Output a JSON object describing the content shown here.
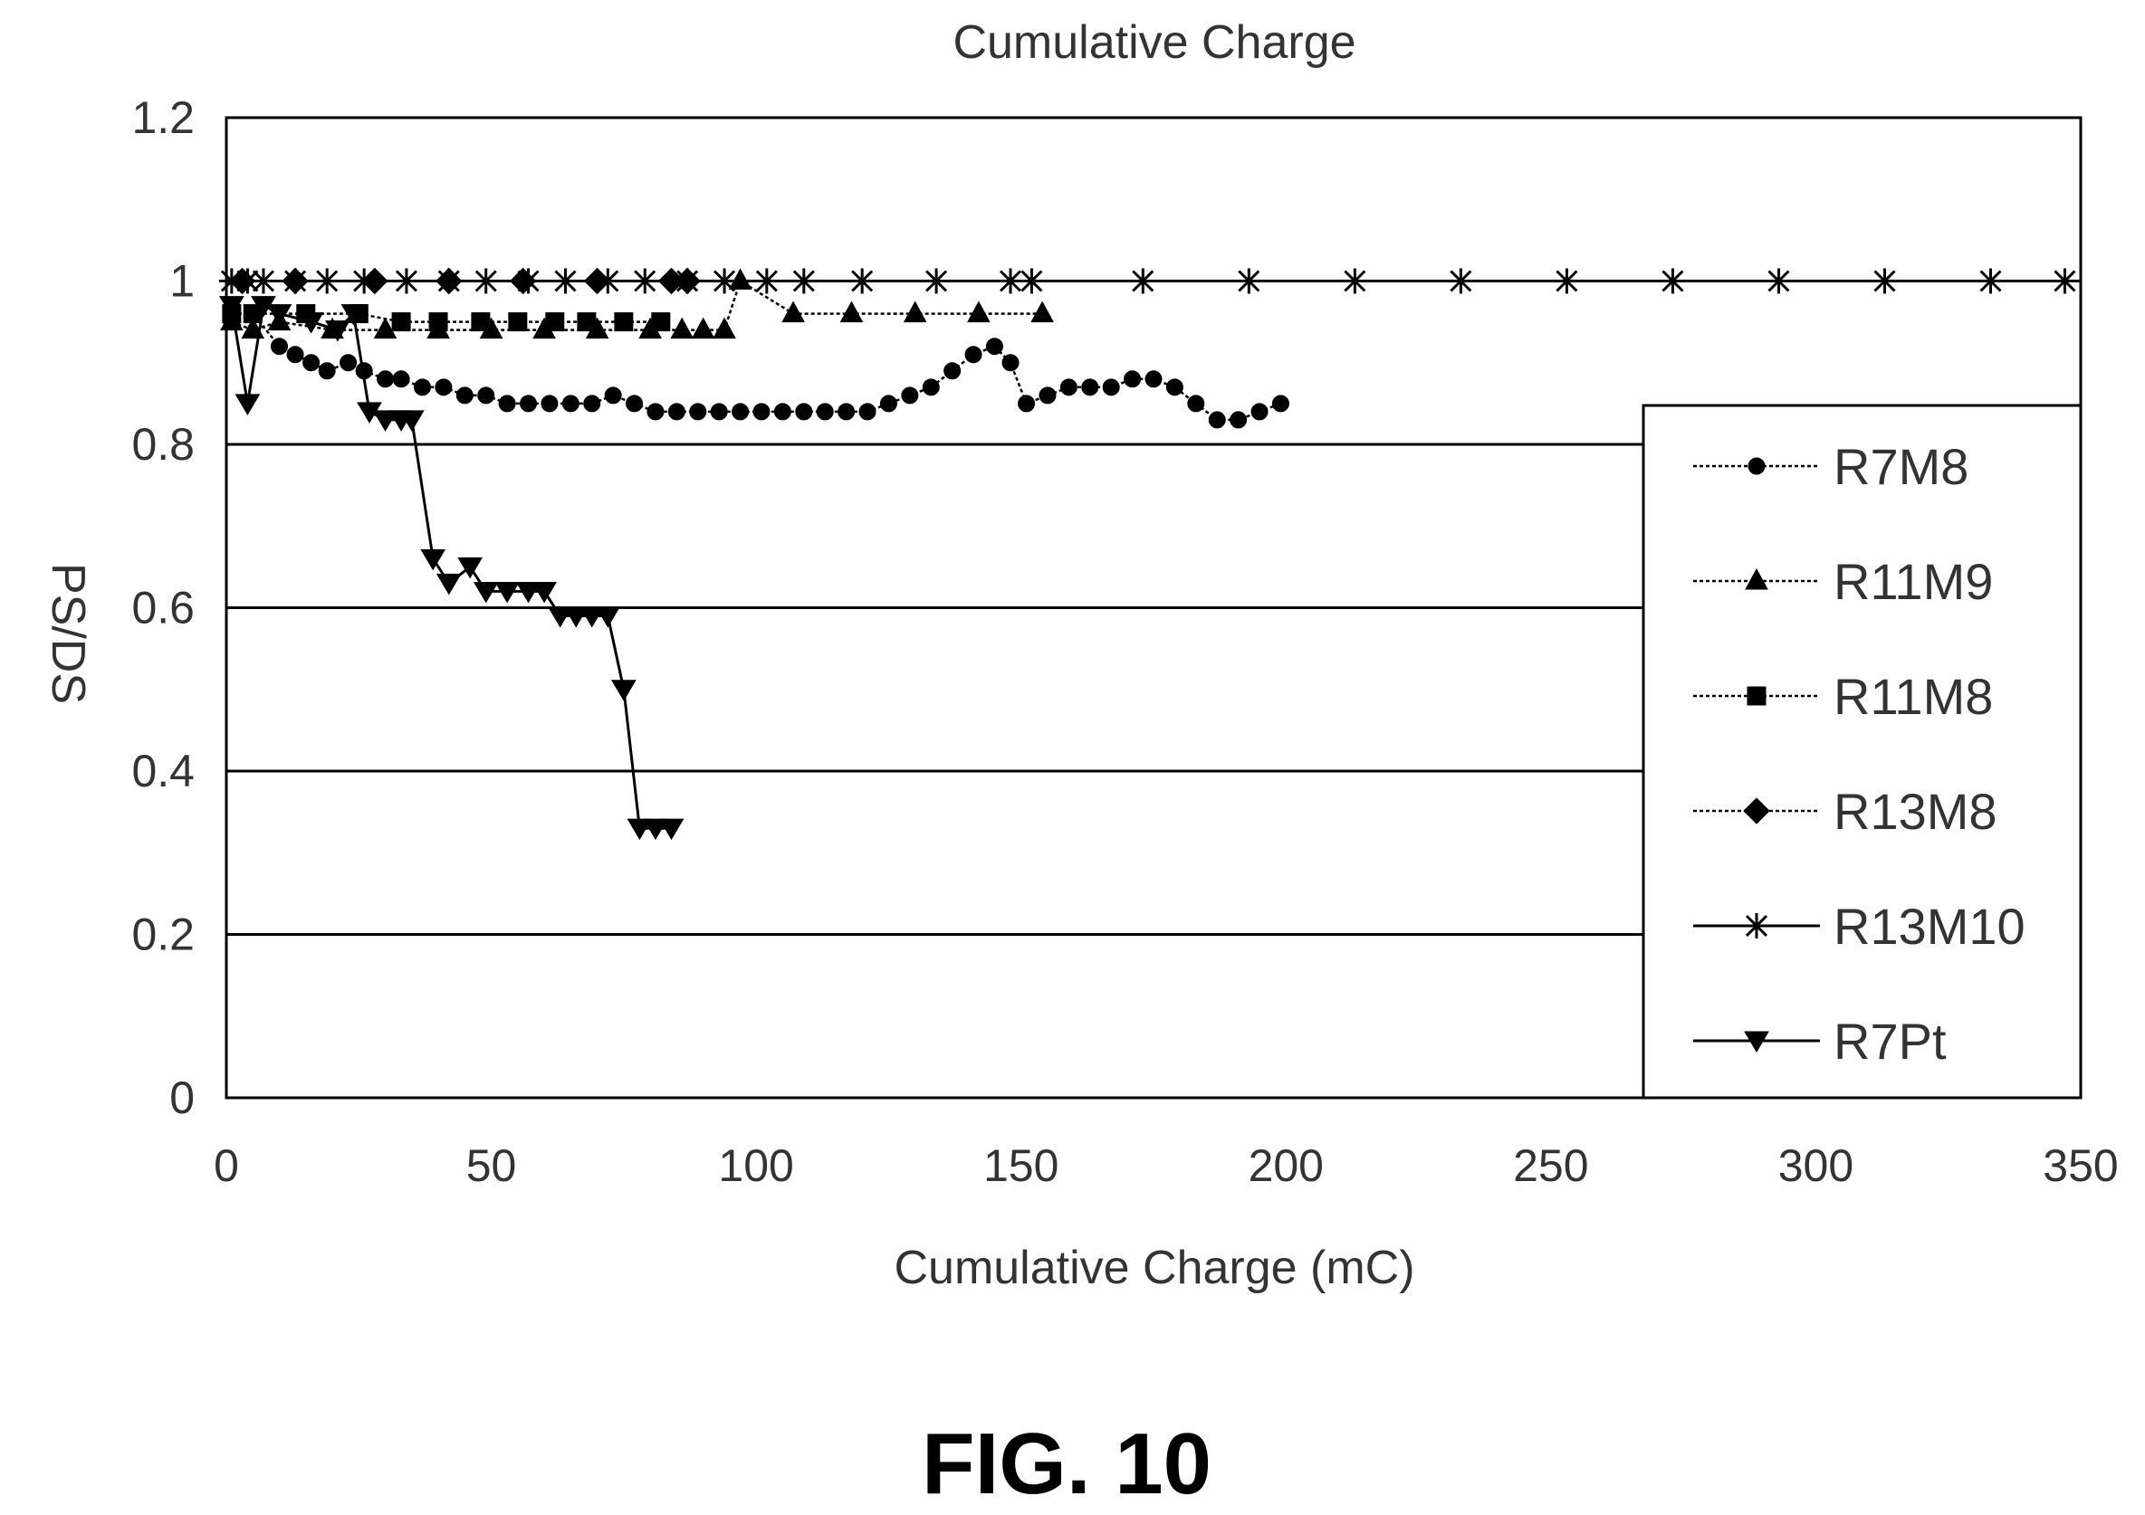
{
  "figure_label": "FIG. 10",
  "chart_data": {
    "type": "line",
    "title": "Cumulative Charge",
    "xlabel": "Cumulative Charge (mC)",
    "ylabel": "PS/DS",
    "xlim": [
      0,
      350
    ],
    "ylim": [
      0,
      1.2
    ],
    "x_ticks": [
      "0",
      "50",
      "100",
      "150",
      "200",
      "250",
      "300",
      "350"
    ],
    "y_ticks": [
      "0",
      "0.2",
      "0.4",
      "0.6",
      "0.8",
      "1",
      "1.2"
    ],
    "grid": "horizontal",
    "legend_position": "right",
    "series": [
      {
        "name": "R7M8",
        "marker": "circle",
        "line": "dotted",
        "color": "#000000",
        "points": [
          [
            1,
            0.95
          ],
          [
            5,
            0.96
          ],
          [
            10,
            0.92
          ],
          [
            13,
            0.91
          ],
          [
            16,
            0.9
          ],
          [
            19,
            0.89
          ],
          [
            23,
            0.9
          ],
          [
            26,
            0.89
          ],
          [
            30,
            0.88
          ],
          [
            33,
            0.88
          ],
          [
            37,
            0.87
          ],
          [
            41,
            0.87
          ],
          [
            45,
            0.86
          ],
          [
            49,
            0.86
          ],
          [
            53,
            0.85
          ],
          [
            57,
            0.85
          ],
          [
            61,
            0.85
          ],
          [
            65,
            0.85
          ],
          [
            69,
            0.85
          ],
          [
            73,
            0.86
          ],
          [
            77,
            0.85
          ],
          [
            81,
            0.84
          ],
          [
            85,
            0.84
          ],
          [
            89,
            0.84
          ],
          [
            93,
            0.84
          ],
          [
            97,
            0.84
          ],
          [
            101,
            0.84
          ],
          [
            105,
            0.84
          ],
          [
            109,
            0.84
          ],
          [
            113,
            0.84
          ],
          [
            117,
            0.84
          ],
          [
            121,
            0.84
          ],
          [
            125,
            0.85
          ],
          [
            129,
            0.86
          ],
          [
            133,
            0.87
          ],
          [
            137,
            0.89
          ],
          [
            141,
            0.91
          ],
          [
            145,
            0.92
          ],
          [
            148,
            0.9
          ],
          [
            151,
            0.85
          ],
          [
            155,
            0.86
          ],
          [
            159,
            0.87
          ],
          [
            163,
            0.87
          ],
          [
            167,
            0.87
          ],
          [
            171,
            0.88
          ],
          [
            175,
            0.88
          ],
          [
            179,
            0.87
          ],
          [
            183,
            0.85
          ],
          [
            187,
            0.83
          ],
          [
            191,
            0.83
          ],
          [
            195,
            0.84
          ],
          [
            199,
            0.85
          ]
        ]
      },
      {
        "name": "R11M9",
        "marker": "triangle-up",
        "line": "dotted",
        "color": "#000000",
        "points": [
          [
            1,
            0.95
          ],
          [
            5,
            0.94
          ],
          [
            10,
            0.95
          ],
          [
            20,
            0.94
          ],
          [
            30,
            0.94
          ],
          [
            40,
            0.94
          ],
          [
            50,
            0.94
          ],
          [
            60,
            0.94
          ],
          [
            70,
            0.94
          ],
          [
            80,
            0.94
          ],
          [
            86,
            0.94
          ],
          [
            90,
            0.94
          ],
          [
            94,
            0.94
          ],
          [
            97,
            1.0
          ],
          [
            107,
            0.96
          ],
          [
            118,
            0.96
          ],
          [
            130,
            0.96
          ],
          [
            142,
            0.96
          ],
          [
            154,
            0.96
          ]
        ]
      },
      {
        "name": "R11M8",
        "marker": "square",
        "line": "dotted",
        "color": "#000000",
        "points": [
          [
            1,
            0.96
          ],
          [
            5,
            0.96
          ],
          [
            15,
            0.96
          ],
          [
            25,
            0.96
          ],
          [
            33,
            0.95
          ],
          [
            40,
            0.95
          ],
          [
            48,
            0.95
          ],
          [
            55,
            0.95
          ],
          [
            62,
            0.95
          ],
          [
            68,
            0.95
          ],
          [
            75,
            0.95
          ],
          [
            82,
            0.95
          ]
        ]
      },
      {
        "name": "R13M8",
        "marker": "diamond",
        "line": "dotted",
        "color": "#000000",
        "points": [
          [
            3,
            1.0
          ],
          [
            13,
            1.0
          ],
          [
            28,
            1.0
          ],
          [
            42,
            1.0
          ],
          [
            56,
            1.0
          ],
          [
            70,
            1.0
          ],
          [
            84,
            1.0
          ],
          [
            87,
            1.0
          ]
        ]
      },
      {
        "name": "R13M10",
        "marker": "star",
        "line": "solid",
        "color": "#000000",
        "points": [
          [
            1,
            1.0
          ],
          [
            4,
            1.0
          ],
          [
            7,
            1.0
          ],
          [
            13,
            1.0
          ],
          [
            19,
            1.0
          ],
          [
            26,
            1.0
          ],
          [
            34,
            1.0
          ],
          [
            42,
            1.0
          ],
          [
            49,
            1.0
          ],
          [
            57,
            1.0
          ],
          [
            64,
            1.0
          ],
          [
            72,
            1.0
          ],
          [
            79,
            1.0
          ],
          [
            87,
            1.0
          ],
          [
            94,
            1.0
          ],
          [
            102,
            1.0
          ],
          [
            109,
            1.0
          ],
          [
            120,
            1.0
          ],
          [
            134,
            1.0
          ],
          [
            148,
            1.0
          ],
          [
            152,
            1.0
          ],
          [
            173,
            1.0
          ],
          [
            193,
            1.0
          ],
          [
            213,
            1.0
          ],
          [
            233,
            1.0
          ],
          [
            253,
            1.0
          ],
          [
            273,
            1.0
          ],
          [
            293,
            1.0
          ],
          [
            313,
            1.0
          ],
          [
            333,
            1.0
          ],
          [
            347,
            1.0
          ]
        ]
      },
      {
        "name": "R7Pt",
        "marker": "triangle-down",
        "line": "solid",
        "color": "#000000",
        "points": [
          [
            1,
            0.97
          ],
          [
            4,
            0.85
          ],
          [
            7,
            0.97
          ],
          [
            10,
            0.96
          ],
          [
            16,
            0.95
          ],
          [
            21,
            0.94
          ],
          [
            24,
            0.96
          ],
          [
            27,
            0.84
          ],
          [
            30,
            0.83
          ],
          [
            33,
            0.83
          ],
          [
            35,
            0.83
          ],
          [
            39,
            0.66
          ],
          [
            42,
            0.63
          ],
          [
            46,
            0.65
          ],
          [
            49,
            0.62
          ],
          [
            53,
            0.62
          ],
          [
            57,
            0.62
          ],
          [
            60,
            0.62
          ],
          [
            63,
            0.59
          ],
          [
            66,
            0.59
          ],
          [
            69,
            0.59
          ],
          [
            72,
            0.59
          ],
          [
            75,
            0.5
          ],
          [
            78,
            0.33
          ],
          [
            81,
            0.33
          ],
          [
            84,
            0.33
          ]
        ]
      }
    ]
  }
}
